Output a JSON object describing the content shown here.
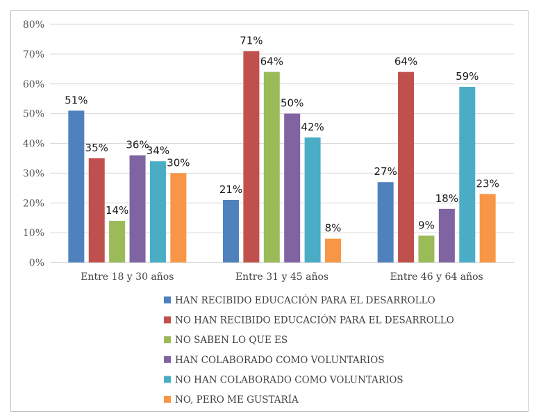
{
  "chart_data": {
    "type": "bar",
    "title": "",
    "xlabel": "",
    "ylabel": "",
    "ylim": [
      0,
      80
    ],
    "y_ticks": [
      "0%",
      "10%",
      "20%",
      "30%",
      "40%",
      "50%",
      "60%",
      "70%",
      "80%"
    ],
    "grid": true,
    "legend_position": "bottom",
    "categories": [
      "Entre 18 y 30  años",
      "Entre 31 y 45 años",
      "Entre 46 y 64 años"
    ],
    "series": [
      {
        "name": "HAN RECIBIDO EDUCACIÓN PARA EL DESARROLLO",
        "color": "#4f81bd",
        "values": [
          51,
          21,
          27
        ],
        "labels": [
          "51%",
          "21%",
          "27%"
        ]
      },
      {
        "name": "NO HAN RECIBIDO EDUCACIÓN PARA EL DESARROLLO",
        "color": "#c0504d",
        "values": [
          35,
          71,
          64
        ],
        "labels": [
          "35%",
          "71%",
          "64%"
        ]
      },
      {
        "name": "NO SABEN LO QUE ES",
        "color": "#9bbb59",
        "values": [
          14,
          64,
          9
        ],
        "labels": [
          "14%",
          "64%",
          "9%"
        ]
      },
      {
        "name": "HAN COLABORADO COMO VOLUNTARIOS",
        "color": "#8064a2",
        "values": [
          36,
          50,
          18
        ],
        "labels": [
          "36%",
          "50%",
          "18%"
        ]
      },
      {
        "name": "NO HAN COLABORADO COMO VOLUNTARIOS",
        "color": "#4bacc6",
        "values": [
          34,
          42,
          59
        ],
        "labels": [
          "34%",
          "42%",
          "59%"
        ]
      },
      {
        "name": "NO, PERO ME GUSTARÍA",
        "color": "#f79646",
        "values": [
          30,
          8,
          23
        ],
        "labels": [
          "30%",
          "8%",
          "23%"
        ]
      }
    ]
  }
}
